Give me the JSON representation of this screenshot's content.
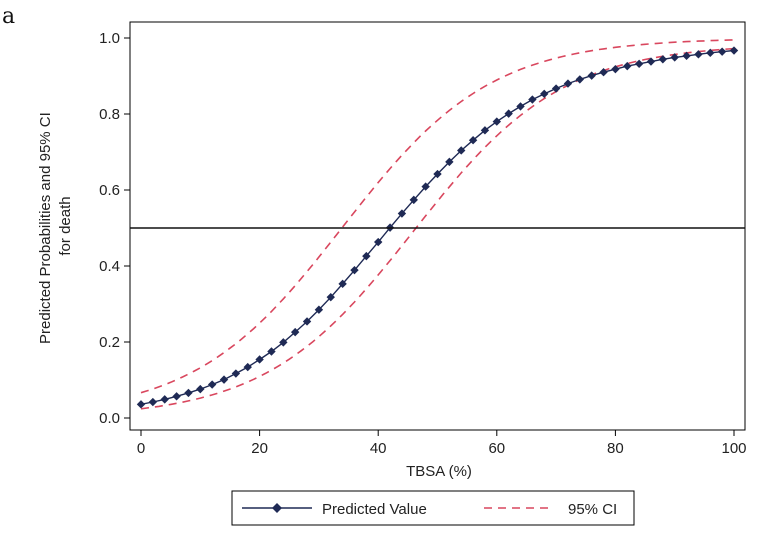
{
  "panel_label": "a",
  "chart_data": {
    "type": "line",
    "xlabel": "TBSA (%)",
    "ylabel": [
      "Predicted Probabilities and 95% CI",
      "for death"
    ],
    "xlim": [
      0,
      100
    ],
    "ylim": [
      0,
      1
    ],
    "x_ticks": [
      0,
      20,
      40,
      60,
      80,
      100
    ],
    "y_ticks": [
      0.0,
      0.2,
      0.4,
      0.6,
      0.8,
      1.0
    ],
    "y_tick_labels": [
      "0.0",
      "0.2",
      "0.4",
      "0.6",
      "0.8",
      "1.0"
    ],
    "reference_line_y": 0.5,
    "grid": false,
    "legend_position": "bottom",
    "model": {
      "intercept": -3.3,
      "slope": 0.085,
      "ci_lower_center": 46,
      "ci_upper_center": 34,
      "ci_slope": 0.08
    },
    "series": [
      {
        "name": "Predicted Value",
        "style": "solid-diamond",
        "color": "#1f2a55",
        "x": [
          0,
          2,
          4,
          6,
          8,
          10,
          12,
          14,
          16,
          18,
          20,
          22,
          24,
          26,
          28,
          30,
          32,
          34,
          36,
          38,
          40,
          42,
          44,
          46,
          48,
          50,
          52,
          54,
          56,
          58,
          60,
          62,
          64,
          66,
          68,
          70,
          72,
          74,
          76,
          78,
          80,
          82,
          84,
          86,
          88,
          90,
          92,
          94,
          96,
          98,
          100
        ],
        "y": [
          0.036,
          0.042,
          0.049,
          0.057,
          0.066,
          0.076,
          0.088,
          0.101,
          0.117,
          0.134,
          0.154,
          0.175,
          0.199,
          0.226,
          0.254,
          0.285,
          0.318,
          0.353,
          0.389,
          0.426,
          0.463,
          0.501,
          0.538,
          0.574,
          0.609,
          0.642,
          0.674,
          0.704,
          0.731,
          0.757,
          0.78,
          0.801,
          0.82,
          0.838,
          0.853,
          0.867,
          0.88,
          0.891,
          0.901,
          0.91,
          0.918,
          0.926,
          0.932,
          0.938,
          0.944,
          0.949,
          0.953,
          0.957,
          0.961,
          0.964,
          0.967
        ]
      },
      {
        "name": "95% CI",
        "style": "dashed",
        "color": "#d9475e"
      }
    ]
  }
}
